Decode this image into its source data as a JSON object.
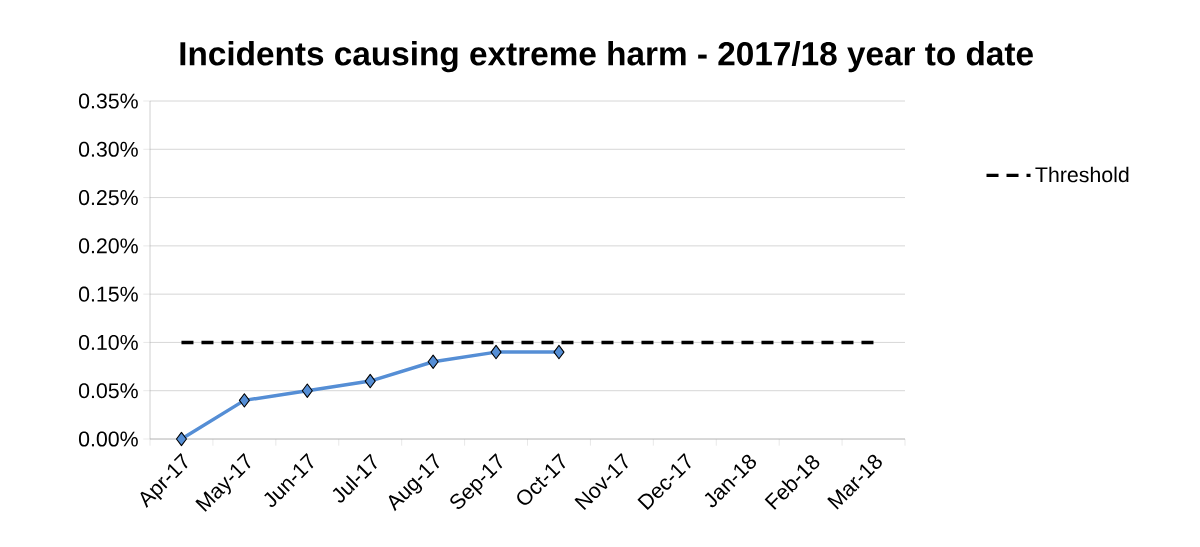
{
  "chart_data": {
    "type": "line",
    "title": "Incidents causing extreme harm - 2017/18 year to date",
    "categories": [
      "Apr-17",
      "May-17",
      "Jun-17",
      "Jul-17",
      "Aug-17",
      "Sep-17",
      "Oct-17",
      "Nov-17",
      "Dec-17",
      "Jan-18",
      "Feb-18",
      "Mar-18"
    ],
    "series": [
      {
        "color": "#558ed5",
        "marker": "diamond",
        "values": [
          0,
          0.04,
          0.05,
          0.06,
          0.08,
          0.09,
          0.09,
          null,
          null,
          null,
          null,
          null
        ]
      },
      {
        "name": "Threshold",
        "color": "#000000",
        "line_style": "dashed",
        "values": [
          0.1,
          0.1,
          0.1,
          0.1,
          0.1,
          0.1,
          0.1,
          0.1,
          0.1,
          0.1,
          0.1,
          0.1
        ]
      }
    ],
    "ylim": [
      0,
      0.35
    ],
    "yticks": [
      {
        "value": 0,
        "label": "0.00%"
      },
      {
        "value": 0.05,
        "label": "0.05%"
      },
      {
        "value": 0.1,
        "label": "0.10%"
      },
      {
        "value": 0.15,
        "label": "0.15%"
      },
      {
        "value": 0.2,
        "label": "0.20%"
      },
      {
        "value": 0.25,
        "label": "0.25%"
      },
      {
        "value": 0.3,
        "label": "0.30%"
      },
      {
        "value": 0.35,
        "label": "0.35%"
      }
    ],
    "grid": "y",
    "legend": "right"
  }
}
